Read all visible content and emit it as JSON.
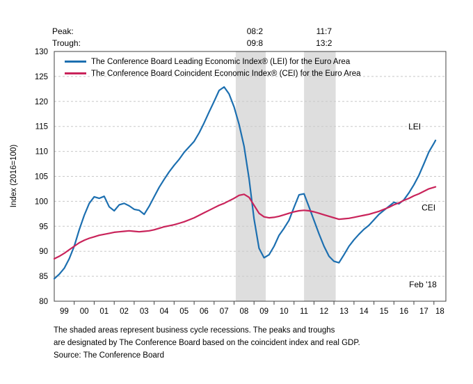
{
  "header": {
    "peak_label": "Peak:",
    "trough_label": "Trough:"
  },
  "chart_data": {
    "type": "line",
    "ylabel": "Index (2016=100)",
    "ylim": [
      80,
      130
    ],
    "ytick_step": 5,
    "xlim": [
      1999.0,
      2018.6
    ],
    "xtick_labels": [
      "99",
      "00",
      "01",
      "02",
      "03",
      "04",
      "05",
      "06",
      "07",
      "08",
      "09",
      "10",
      "11",
      "12",
      "13",
      "14",
      "15",
      "16",
      "17",
      "18"
    ],
    "grid": "horizontal-dashed",
    "legend_position": "top-left-inside",
    "grid_color": "#c8c8c8",
    "frame_color": "#404040",
    "band_color": "#dedede",
    "last_point_annotation": "Feb '18",
    "x_start": 1999.0,
    "x_step": 0.25,
    "x_end": 2018.083,
    "recessions": [
      {
        "peak": "08:2",
        "trough": "09:8",
        "start": 2008.083,
        "end": 2009.583
      },
      {
        "peak": "11:7",
        "trough": "13:2",
        "start": 2011.5,
        "end": 2013.083
      }
    ],
    "series": [
      {
        "id": "LEI",
        "name": "The Conference Board Leading Economic Index® (LEI) for the Euro Area",
        "end_label": "LEI",
        "color": "#1c6fb0",
        "values": [
          84.5,
          85.4,
          86.6,
          88.5,
          91.0,
          94.3,
          97.2,
          99.6,
          100.9,
          100.6,
          101.0,
          98.9,
          98.1,
          99.3,
          99.6,
          99.1,
          98.4,
          98.2,
          97.4,
          99.0,
          100.9,
          102.8,
          104.4,
          105.9,
          107.2,
          108.4,
          109.8,
          110.9,
          112.0,
          113.7,
          115.7,
          117.9,
          120.0,
          122.2,
          122.9,
          121.5,
          118.9,
          115.4,
          111.0,
          104.5,
          96.5,
          90.6,
          88.7,
          89.3,
          91.0,
          93.2,
          94.6,
          96.2,
          98.8,
          101.3,
          101.5,
          98.9,
          96.2,
          93.5,
          91.0,
          89.0,
          88.0,
          87.7,
          89.3,
          91.0,
          92.3,
          93.4,
          94.4,
          95.2,
          96.3,
          97.4,
          98.2,
          99.0,
          99.8,
          99.5,
          100.3,
          101.7,
          103.3,
          105.2,
          107.5,
          109.9,
          111.6,
          112.2
        ]
      },
      {
        "id": "CEI",
        "name": "The Conference Board Coincident Economic Index® (CEI) for the Euro Area",
        "end_label": "CEI",
        "color": "#c9235a",
        "values": [
          88.5,
          89.0,
          89.6,
          90.3,
          91.0,
          91.7,
          92.2,
          92.6,
          92.9,
          93.2,
          93.4,
          93.6,
          93.8,
          93.9,
          94.0,
          94.1,
          94.0,
          93.9,
          94.0,
          94.1,
          94.3,
          94.6,
          94.9,
          95.1,
          95.3,
          95.6,
          95.9,
          96.3,
          96.7,
          97.2,
          97.7,
          98.2,
          98.7,
          99.2,
          99.6,
          100.1,
          100.6,
          101.2,
          101.4,
          100.8,
          99.2,
          97.6,
          96.9,
          96.7,
          96.8,
          97.0,
          97.3,
          97.6,
          97.9,
          98.1,
          98.2,
          98.1,
          97.9,
          97.6,
          97.3,
          97.0,
          96.7,
          96.4,
          96.5,
          96.6,
          96.8,
          97.0,
          97.2,
          97.4,
          97.7,
          98.0,
          98.4,
          98.8,
          99.3,
          99.7,
          100.2,
          100.6,
          101.1,
          101.5,
          102.0,
          102.5,
          102.8,
          102.9
        ]
      }
    ]
  },
  "footnotes": [
    "The shaded areas represent business cycle recessions. The peaks and troughs",
    "are designated by The Conference Board based on the coincident index and real GDP.",
    "Source: The Conference Board"
  ]
}
